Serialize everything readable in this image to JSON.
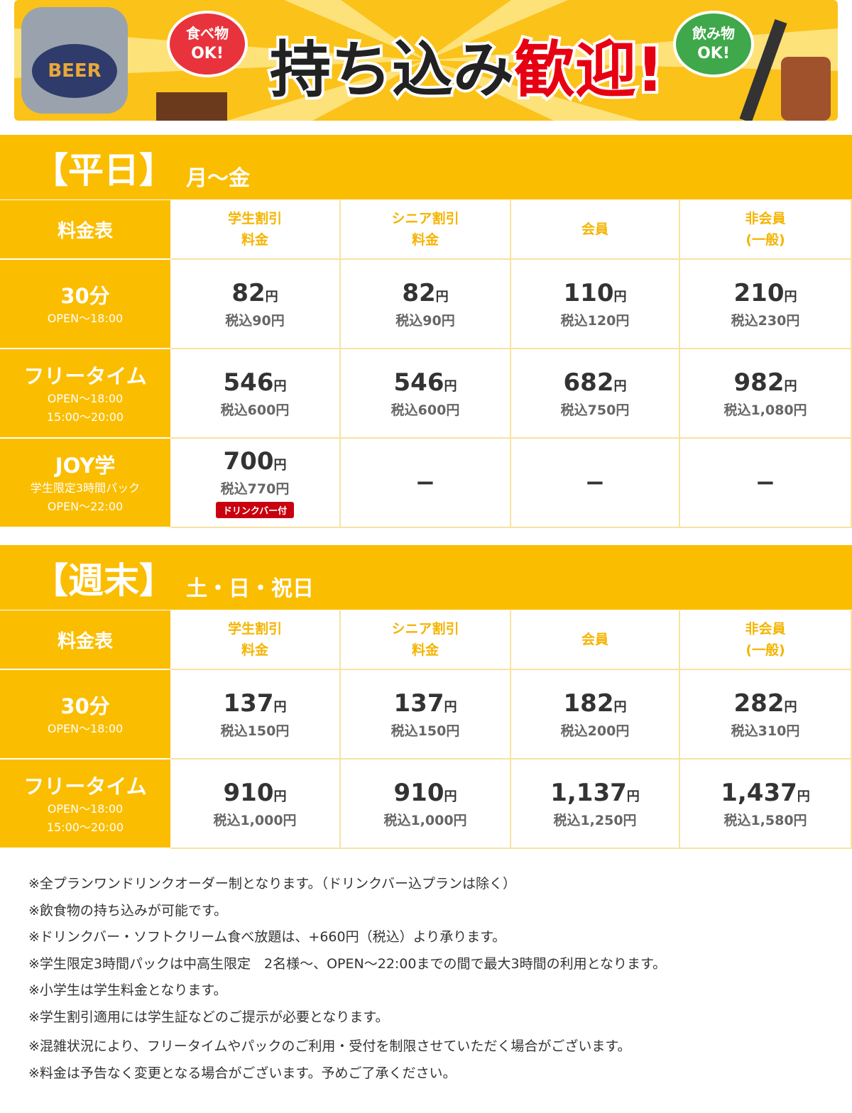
{
  "banner": {
    "can_label": "BEER",
    "food_badge": [
      "食べ物",
      "OK!"
    ],
    "title_main": "持ち込み",
    "title_accent": "歓迎!",
    "drink_badge": [
      "飲み物",
      "OK!"
    ]
  },
  "weekday": {
    "label": "【平日】",
    "days": "月〜金",
    "header": [
      [
        "料金表"
      ],
      [
        "学生割引",
        "料金"
      ],
      [
        "シニア割引",
        "料金"
      ],
      [
        "会員"
      ],
      [
        "非会員",
        "(一般)"
      ]
    ],
    "rows": [
      {
        "plan": "30分",
        "hours": [
          "OPEN〜18:00"
        ],
        "cells": [
          {
            "price": "82",
            "unit": "円",
            "tax": "税込90円"
          },
          {
            "price": "82",
            "unit": "円",
            "tax": "税込90円"
          },
          {
            "price": "110",
            "unit": "円",
            "tax": "税込120円"
          },
          {
            "price": "210",
            "unit": "円",
            "tax": "税込230円"
          }
        ]
      },
      {
        "plan": "フリータイム",
        "hours": [
          "OPEN〜18:00",
          "15:00〜20:00"
        ],
        "cells": [
          {
            "price": "546",
            "unit": "円",
            "tax": "税込600円"
          },
          {
            "price": "546",
            "unit": "円",
            "tax": "税込600円"
          },
          {
            "price": "682",
            "unit": "円",
            "tax": "税込750円"
          },
          {
            "price": "982",
            "unit": "円",
            "tax": "税込1,080円"
          }
        ]
      },
      {
        "plan": "JOY学",
        "hours": [
          "学生限定3時間パック",
          "OPEN〜22:00"
        ],
        "cells": [
          {
            "price": "700",
            "unit": "円",
            "tax": "税込770円",
            "badge": "ドリンクバー付"
          },
          {
            "dash": "−"
          },
          {
            "dash": "−"
          },
          {
            "dash": "−"
          }
        ]
      }
    ]
  },
  "weekend": {
    "label": "【週末】",
    "days": "土・日・祝日",
    "header": [
      [
        "料金表"
      ],
      [
        "学生割引",
        "料金"
      ],
      [
        "シニア割引",
        "料金"
      ],
      [
        "会員"
      ],
      [
        "非会員",
        "(一般)"
      ]
    ],
    "rows": [
      {
        "plan": "30分",
        "hours": [
          "OPEN〜18:00"
        ],
        "cells": [
          {
            "price": "137",
            "unit": "円",
            "tax": "税込150円"
          },
          {
            "price": "137",
            "unit": "円",
            "tax": "税込150円"
          },
          {
            "price": "182",
            "unit": "円",
            "tax": "税込200円"
          },
          {
            "price": "282",
            "unit": "円",
            "tax": "税込310円"
          }
        ]
      },
      {
        "plan": "フリータイム",
        "hours": [
          "OPEN〜18:00",
          "15:00〜20:00"
        ],
        "cells": [
          {
            "price": "910",
            "unit": "円",
            "tax": "税込1,000円"
          },
          {
            "price": "910",
            "unit": "円",
            "tax": "税込1,000円"
          },
          {
            "price": "1,137",
            "unit": "円",
            "tax": "税込1,250円"
          },
          {
            "price": "1,437",
            "unit": "円",
            "tax": "税込1,580円"
          }
        ]
      }
    ]
  },
  "notes": [
    "※全プランワンドリンクオーダー制となります。（ドリンクバー込プランは除く）",
    "※飲食物の持ち込みが可能です。",
    "※ドリンクバー・ソフトクリーム食べ放題は、+660円（税込）より承ります。",
    "※学生限定3時間パックは中高生限定　2名様〜、OPEN〜22:00までの間で最大3時間の利用となります。",
    "※小学生は学生料金となります。",
    "※学生割引適用には学生証などのご提示が必要となります。",
    "※混雑状況により、フリータイムやパックのご利用・受付を制限させていただく場合がございます。",
    "※料金は予告なく変更となる場合がございます。予めご了承ください。"
  ]
}
